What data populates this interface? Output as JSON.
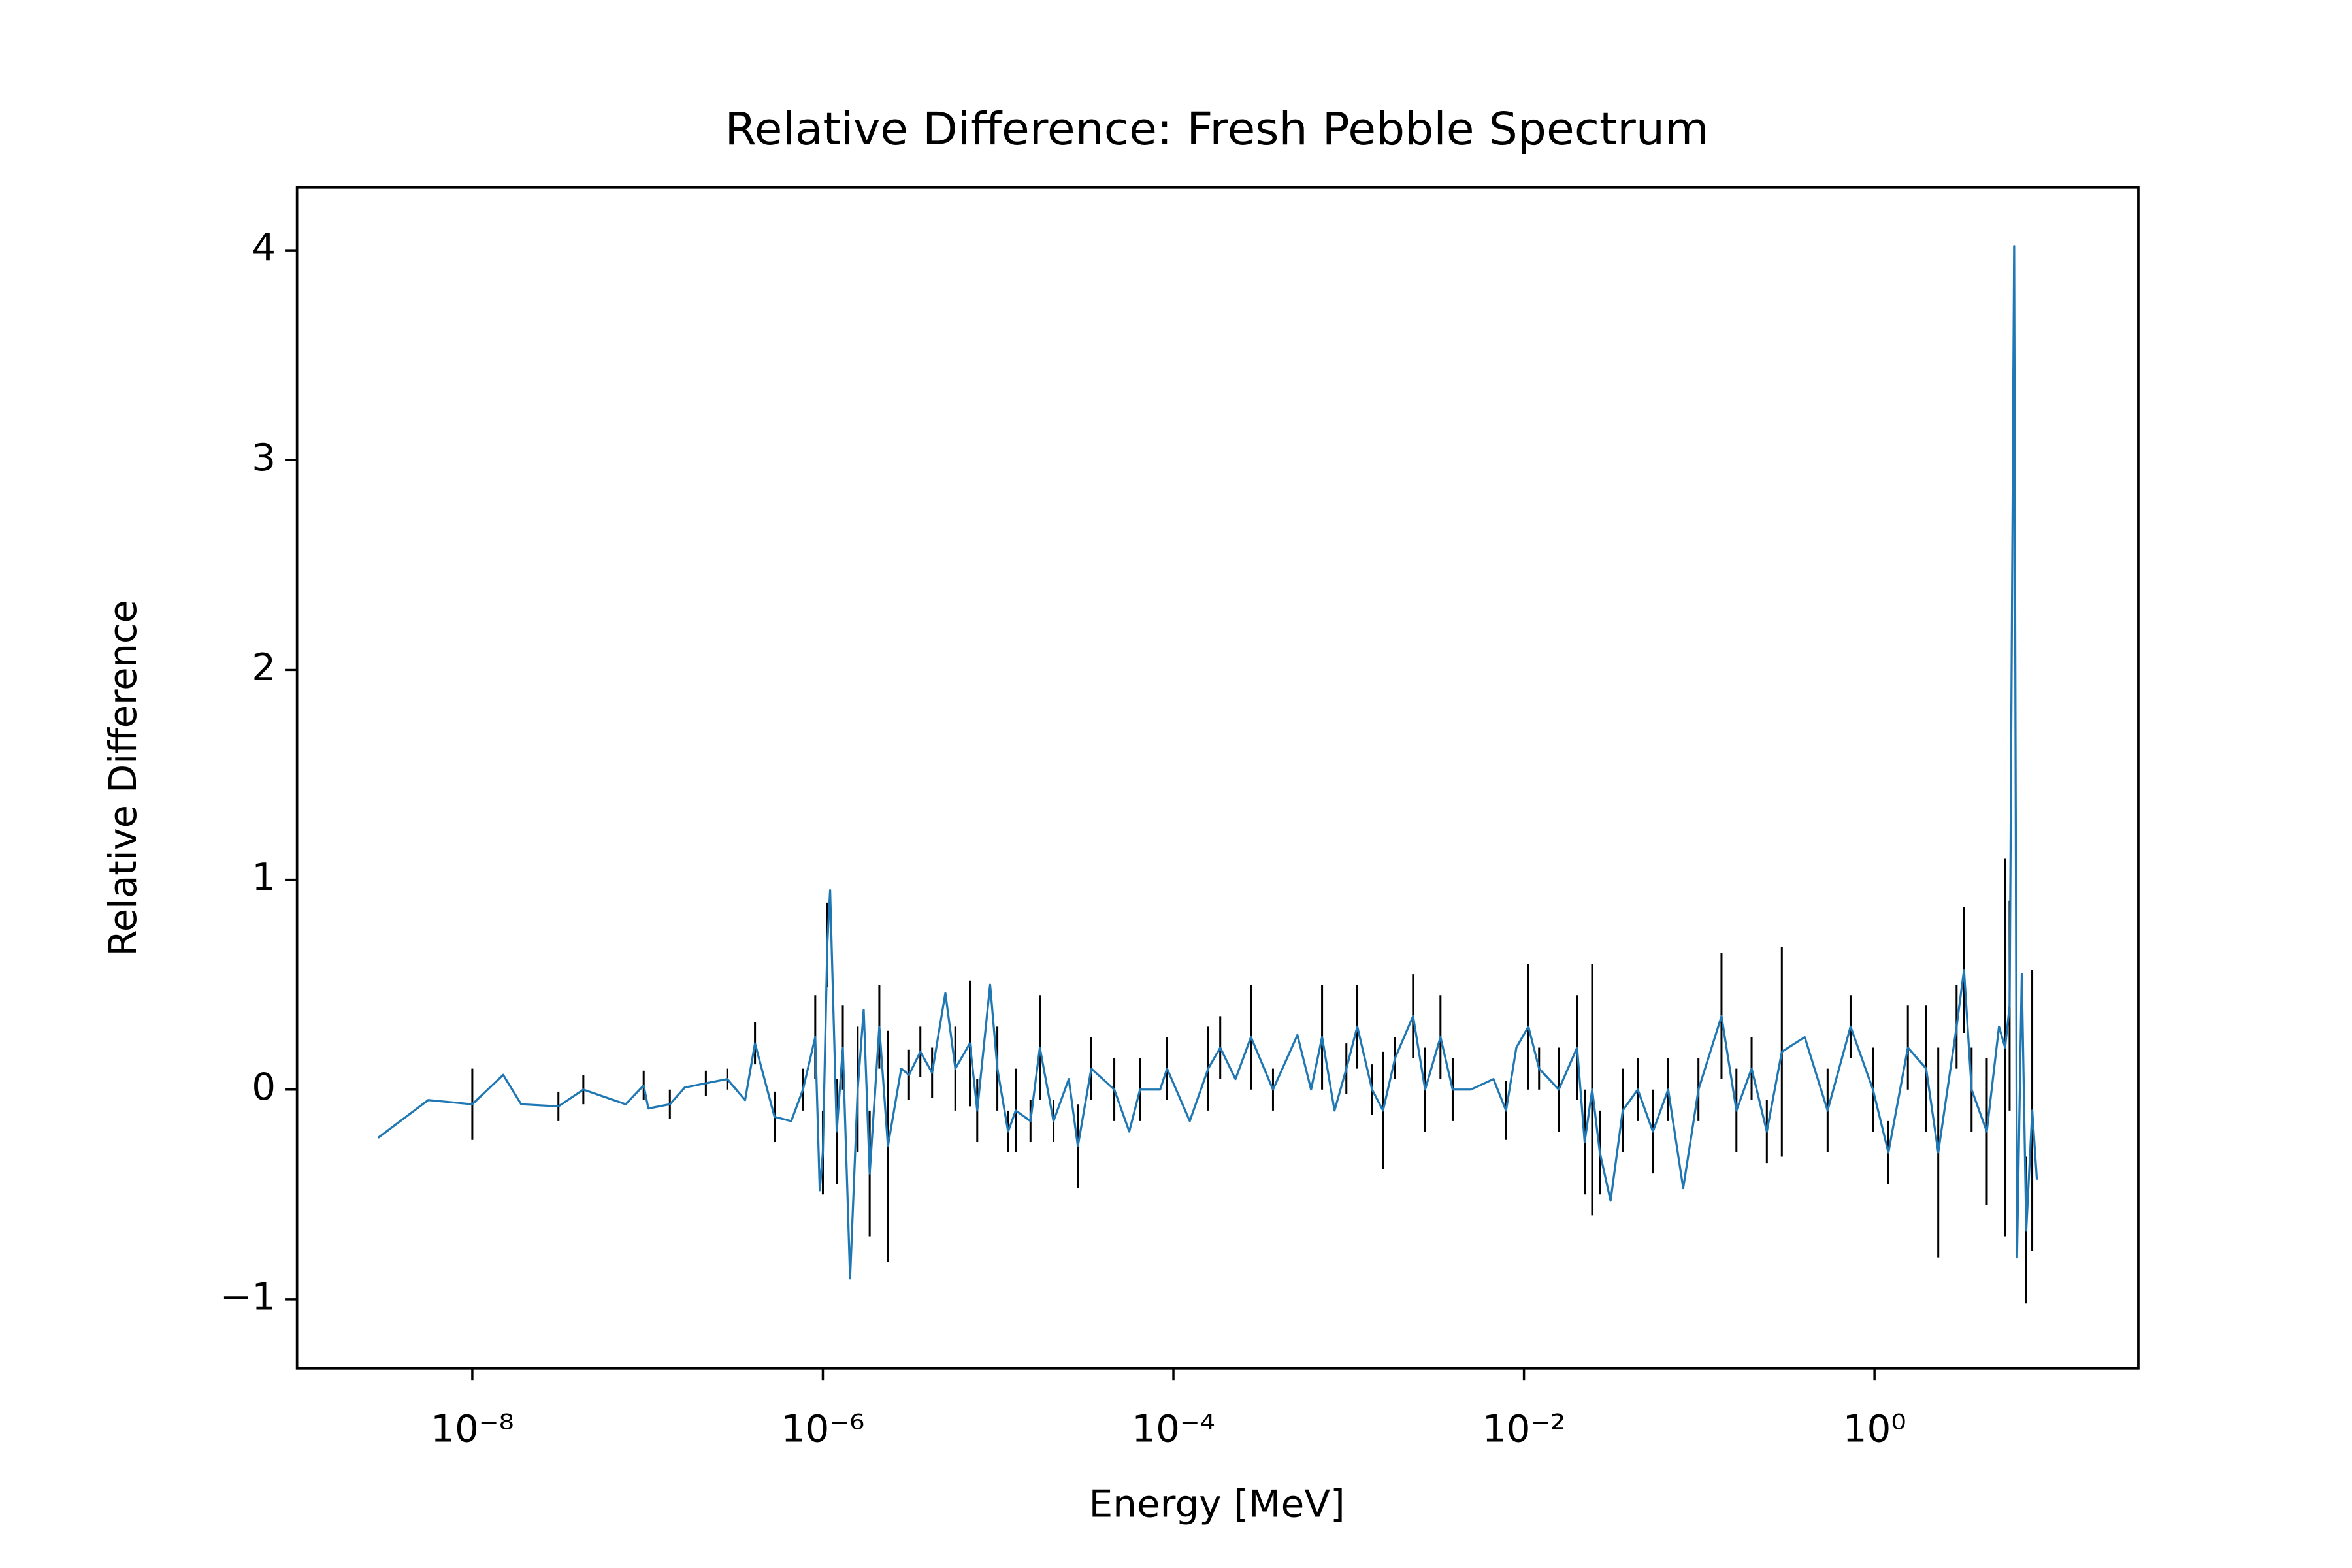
{
  "chart_data": {
    "type": "line",
    "title": "Relative Difference: Fresh Pebble Spectrum",
    "xlabel": "Energy [MeV]",
    "ylabel": "Relative Difference",
    "xscale": "log",
    "xlim": [
      1e-09,
      32
    ],
    "ylim": [
      -1.33,
      4.3
    ],
    "xticks": [
      {
        "value": 1e-08,
        "label": "10⁻⁸"
      },
      {
        "value": 1e-06,
        "label": "10⁻⁶"
      },
      {
        "value": 0.0001,
        "label": "10⁻⁴"
      },
      {
        "value": 0.01,
        "label": "10⁻²"
      },
      {
        "value": 1,
        "label": "10⁰"
      }
    ],
    "yticks": [
      {
        "value": -1,
        "label": "−1"
      },
      0,
      1,
      2,
      3,
      4
    ],
    "color": "#1f77b4",
    "error_color": "#000000",
    "x": [
      2.9e-09,
      5.6e-09,
      1e-08,
      1.5e-08,
      1.9e-08,
      3.1e-08,
      4.3e-08,
      7.5e-08,
      9.5e-08,
      1.01e-07,
      1.34e-07,
      1.63e-07,
      2.15e-07,
      2.85e-07,
      3.6e-07,
      4.1e-07,
      5.3e-07,
      6.6e-07,
      7.7e-07,
      9.05e-07,
      9.6e-07,
      1e-06,
      1.06e-06,
      1.1e-06,
      1.2e-06,
      1.3e-06,
      1.43e-06,
      1.58e-06,
      1.71e-06,
      1.85e-06,
      2.1e-06,
      2.35e-06,
      2.8e-06,
      3.1e-06,
      3.6e-06,
      4.2e-06,
      5e-06,
      5.7e-06,
      6.9e-06,
      7.6e-06,
      9e-06,
      9.9e-06,
      1.14e-05,
      1.26e-05,
      1.53e-05,
      1.73e-05,
      2.07e-05,
      2.53e-05,
      2.85e-05,
      3.4e-05,
      4.6e-05,
      5.6e-05,
      6.45e-05,
      8.4e-05,
      9.2e-05,
      0.000124,
      0.000158,
      0.000185,
      0.000226,
      0.000277,
      0.00037,
      0.00051,
      0.00061,
      0.000705,
      0.00083,
      0.00097,
      0.00112,
      0.00136,
      0.00157,
      0.00184,
      0.00233,
      0.00273,
      0.00334,
      0.00392,
      0.00498,
      0.0067,
      0.0079,
      0.00905,
      0.0106,
      0.0122,
      0.0158,
      0.0201,
      0.0222,
      0.0245,
      0.0271,
      0.0312,
      0.0366,
      0.0446,
      0.0544,
      0.0665,
      0.081,
      0.099,
      0.134,
      0.163,
      0.199,
      0.243,
      0.296,
      0.4,
      0.54,
      0.73,
      0.98,
      1.2,
      1.55,
      1.97,
      2.31,
      2.94,
      3.24,
      3.58,
      4.37,
      5.13,
      5.56,
      5.9,
      6.26,
      6.5,
      6.92,
      7.34,
      7.94,
      8.44
    ],
    "values": [
      -0.23,
      -0.05,
      -0.07,
      0.07,
      -0.07,
      -0.08,
      0.0,
      -0.07,
      0.02,
      -0.09,
      -0.07,
      0.01,
      0.03,
      0.05,
      -0.05,
      0.22,
      -0.13,
      -0.15,
      0.0,
      0.25,
      -0.48,
      -0.3,
      0.69,
      0.95,
      -0.2,
      0.2,
      -0.9,
      0.0,
      0.38,
      -0.4,
      0.3,
      -0.27,
      0.1,
      0.07,
      0.18,
      0.08,
      0.46,
      0.1,
      0.22,
      -0.1,
      0.5,
      0.1,
      -0.2,
      -0.1,
      -0.15,
      0.2,
      -0.15,
      0.05,
      -0.27,
      0.1,
      0.0,
      -0.2,
      0.0,
      0.0,
      0.1,
      -0.15,
      0.1,
      0.2,
      0.05,
      0.25,
      0.0,
      0.26,
      0.0,
      0.25,
      -0.1,
      0.1,
      0.3,
      0.0,
      -0.1,
      0.15,
      0.35,
      0.0,
      0.25,
      0.0,
      0.0,
      0.05,
      -0.1,
      0.2,
      0.3,
      0.1,
      0.0,
      0.2,
      -0.25,
      0.0,
      -0.3,
      -0.53,
      -0.1,
      0.0,
      -0.2,
      0.0,
      -0.47,
      0.0,
      0.35,
      -0.1,
      0.1,
      -0.2,
      0.18,
      0.25,
      -0.1,
      0.3,
      0.0,
      -0.3,
      0.2,
      0.1,
      -0.3,
      0.3,
      0.57,
      0.0,
      -0.2,
      0.3,
      0.2,
      0.4,
      4.02,
      -0.8,
      0.55,
      -0.67,
      -0.1,
      -0.43
    ],
    "errors": [
      0,
      0,
      0.17,
      0,
      0,
      0.07,
      0.07,
      0,
      0.07,
      0,
      0.07,
      0,
      0.06,
      0.05,
      0,
      0.1,
      0.12,
      0,
      0.1,
      0.2,
      0,
      0.2,
      0.2,
      0,
      0.25,
      0.2,
      0,
      0.3,
      0,
      0.3,
      0.2,
      0.55,
      0,
      0.12,
      0.12,
      0.12,
      0,
      0.2,
      0.3,
      0.15,
      0,
      0.2,
      0.1,
      0.2,
      0.1,
      0.25,
      0.1,
      0,
      0.2,
      0.15,
      0.15,
      0,
      0.15,
      0,
      0.15,
      0,
      0.2,
      0.15,
      0,
      0.25,
      0.1,
      0,
      0,
      0.25,
      0,
      0.12,
      0.2,
      0.12,
      0.28,
      0.1,
      0.2,
      0.2,
      0.2,
      0.15,
      0,
      0,
      0.14,
      0,
      0.3,
      0.1,
      0.2,
      0.25,
      0.25,
      0.6,
      0.2,
      0,
      0.2,
      0.15,
      0.2,
      0.15,
      0,
      0.15,
      0.3,
      0.2,
      0.15,
      0.15,
      0.5,
      0,
      0.2,
      0.15,
      0.2,
      0.15,
      0.2,
      0.3,
      0.5,
      0.2,
      0.3,
      0.2,
      0.35,
      0,
      0.9,
      0.5,
      0,
      0,
      0,
      0.35,
      0.67,
      0
    ]
  }
}
